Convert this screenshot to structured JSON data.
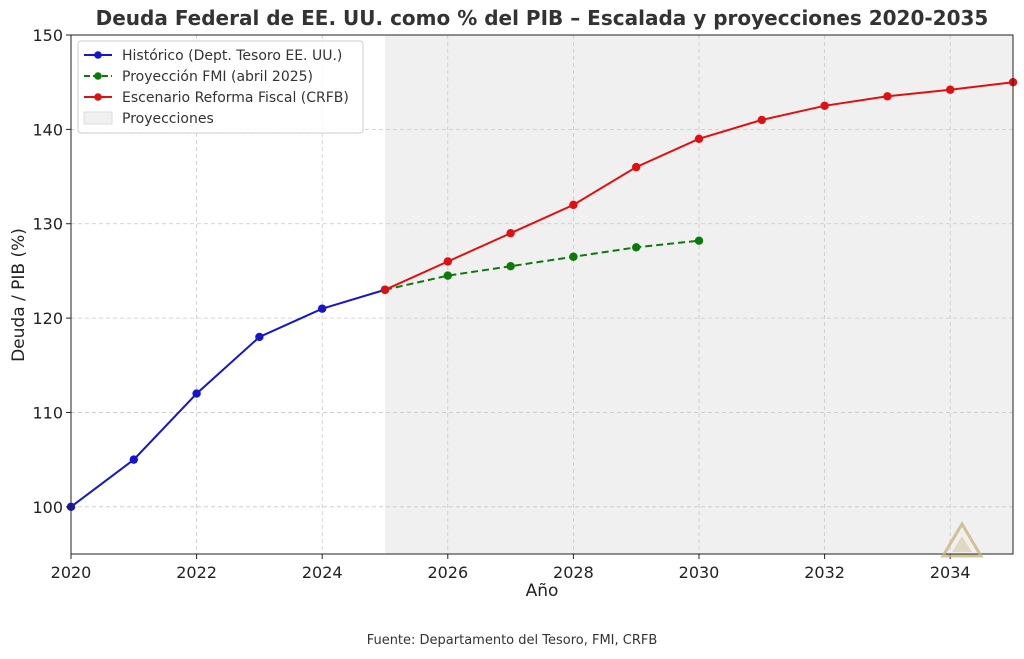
{
  "chart_data": {
    "type": "line",
    "title": "Deuda Federal de EE. UU. como % del PIB – Escalada y proyecciones 2020-2035",
    "xlabel": "Año",
    "ylabel": "Deuda / PIB (%)",
    "xlim": [
      2020,
      2035
    ],
    "ylim": [
      95,
      150
    ],
    "x_ticks": [
      2020,
      2022,
      2024,
      2026,
      2028,
      2030,
      2032,
      2034
    ],
    "y_ticks": [
      100,
      110,
      120,
      130,
      140,
      150
    ],
    "grid": true,
    "legend_position": "top-left",
    "shaded_region": {
      "label": "Proyecciones",
      "x_start": 2025,
      "x_end": 2035,
      "color": "#f0f0f0"
    },
    "series": [
      {
        "name": "Histórico (Dept. Tesoro EE. UU.)",
        "color": "#1515cc",
        "style": "solid",
        "x": [
          2020,
          2021,
          2022,
          2023,
          2024,
          2025
        ],
        "y": [
          100,
          105,
          112,
          118,
          121,
          123
        ]
      },
      {
        "name": "Proyección FMI (abril 2025)",
        "color": "#0a7a0a",
        "style": "dashed",
        "x": [
          2025,
          2026,
          2027,
          2028,
          2029,
          2030
        ],
        "y": [
          123,
          124.5,
          125.5,
          126.5,
          127.5,
          128.2
        ]
      },
      {
        "name": "Escenario Reforma Fiscal (CRFB)",
        "color": "#e01010",
        "style": "solid",
        "x": [
          2025,
          2026,
          2027,
          2028,
          2029,
          2030,
          2031,
          2032,
          2033,
          2034,
          2035
        ],
        "y": [
          123,
          126,
          129,
          132,
          136,
          139,
          141,
          142.5,
          143.5,
          144.2,
          145
        ]
      }
    ],
    "source": "Fuente: Departamento del Tesoro, FMI, CRFB"
  },
  "watermark": {
    "icon": "triangle-logo-icon",
    "color": "#c8b27a"
  }
}
